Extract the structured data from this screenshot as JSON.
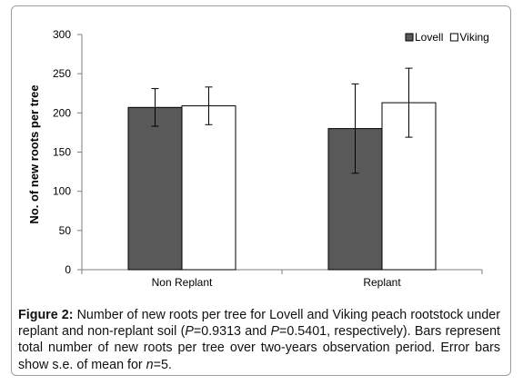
{
  "chart_data": {
    "type": "bar",
    "categories": [
      "Non Replant",
      "Replant"
    ],
    "series": [
      {
        "name": "Lovell",
        "color": "#595959",
        "values": [
          207,
          180
        ],
        "error": [
          24,
          57
        ]
      },
      {
        "name": "Viking",
        "color": "#ffffff",
        "values": [
          209,
          213
        ],
        "error": [
          24,
          44
        ]
      }
    ],
    "ylabel": "No. of new roots per tree",
    "xlabel": "",
    "ylim": [
      0,
      300
    ],
    "yticks": [
      0,
      50,
      100,
      150,
      200,
      250,
      300
    ],
    "grid": false,
    "legend_position": "top-right"
  },
  "caption": {
    "label": "Figure 2:",
    "text_1": " Number of new roots per tree for Lovell and Viking peach rootstock under replant and non-replant soil (",
    "p1_symbol": "P",
    "p1_rest": "=0.9313 and ",
    "p2_symbol": "P",
    "p2_rest": "=0.5401, respectively). Bars represent total number of new roots per tree over two-years observation period. Error bars show s.e. of mean for ",
    "n_symbol": "n",
    "n_rest": "=5."
  }
}
